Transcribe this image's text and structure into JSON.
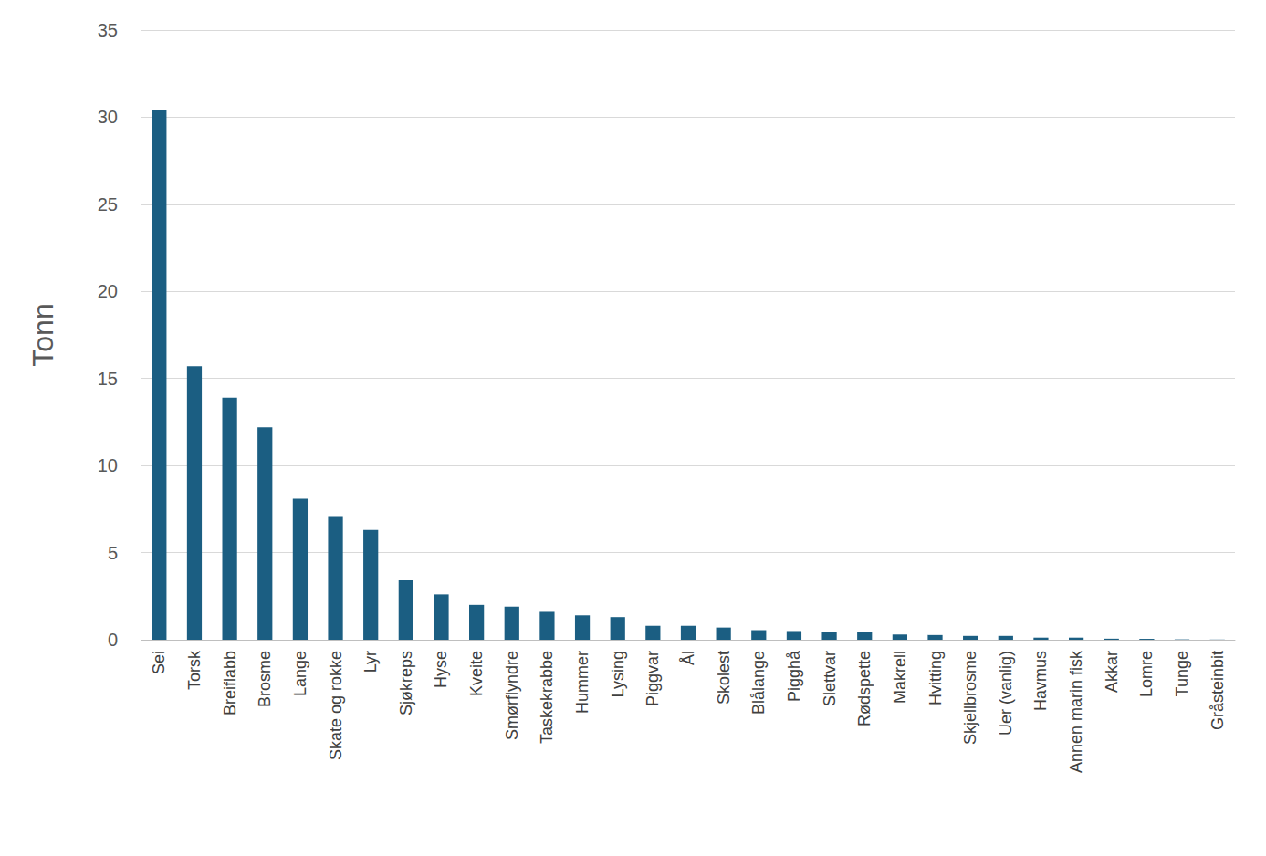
{
  "chart_data": {
    "type": "bar",
    "y_label": "Tonn",
    "categories": [
      "Sei",
      "Torsk",
      "Breiflabb",
      "Brosme",
      "Lange",
      "Skate og rokke",
      "Lyr",
      "Sjøkreps",
      "Hyse",
      "Kveite",
      "Smørflyndre",
      "Taskekrabbe",
      "Hummer",
      "Lysing",
      "Piggvar",
      "Ål",
      "Skolest",
      "Blålange",
      "Pigghå",
      "Slettvar",
      "Rødspette",
      "Makrell",
      "Hvitting",
      "Skjellbrosme",
      "Uer (vanlig)",
      "Havmus",
      "Annen marin fisk",
      "Akkar",
      "Lomre",
      "Tunge",
      "Gråsteinbit"
    ],
    "values": [
      30.4,
      15.7,
      13.9,
      12.2,
      8.1,
      7.1,
      6.3,
      3.4,
      2.6,
      2.0,
      1.9,
      1.6,
      1.4,
      1.3,
      0.8,
      0.8,
      0.7,
      0.55,
      0.5,
      0.45,
      0.42,
      0.3,
      0.27,
      0.22,
      0.22,
      0.12,
      0.12,
      0.06,
      0.05,
      0.02,
      0.01
    ],
    "color": "#1b5e82",
    "ylim": [
      0,
      35
    ],
    "yticks": [
      0,
      5,
      10,
      15,
      20,
      25,
      30,
      35
    ],
    "grid": true
  }
}
